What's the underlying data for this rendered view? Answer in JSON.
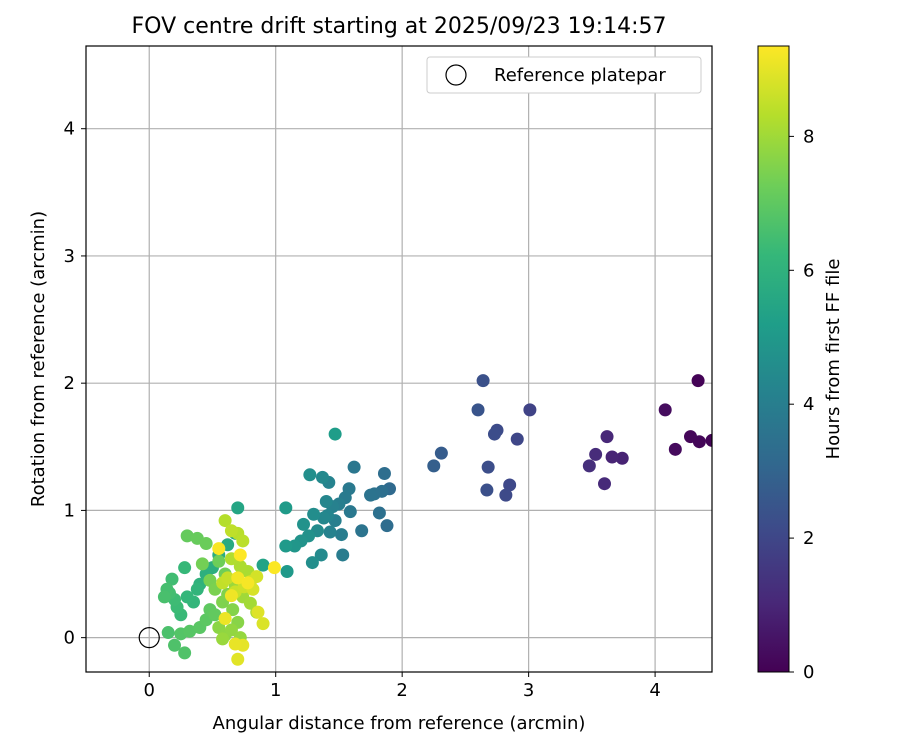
{
  "chart_data": {
    "type": "scatter",
    "title": "FOV centre drift starting at 2025/09/23 19:14:57",
    "xlabel": "Angular distance from reference (arcmin)",
    "ylabel": "Rotation from reference (arcmin)",
    "xlim": [
      -0.5,
      4.45
    ],
    "ylim": [
      -0.27,
      4.65
    ],
    "x_ticks": [
      0,
      1,
      2,
      3,
      4
    ],
    "y_ticks": [
      0,
      1,
      2,
      3,
      4
    ],
    "grid": true,
    "legend": {
      "position": "top-right",
      "entries": [
        "Reference platepar"
      ]
    },
    "colorbar": {
      "label": "Hours from first FF file",
      "min": 0,
      "max": 9.35,
      "ticks": [
        0,
        2,
        4,
        6,
        8
      ],
      "colormap": "viridis"
    },
    "reference_point": {
      "x": 0,
      "y": 0
    },
    "series": [
      {
        "points": [
          [
            4.34,
            2.02,
            0.05
          ],
          [
            4.45,
            1.55,
            0.08
          ],
          [
            4.35,
            1.54,
            0.12
          ],
          [
            4.28,
            1.58,
            0.15
          ],
          [
            4.16,
            1.48,
            0.25
          ],
          [
            4.08,
            1.79,
            0.3
          ],
          [
            3.74,
            1.41,
            0.9
          ],
          [
            3.66,
            1.42,
            0.95
          ],
          [
            3.62,
            1.58,
            1.05
          ],
          [
            3.6,
            1.21,
            1.1
          ],
          [
            3.53,
            1.44,
            1.15
          ],
          [
            3.48,
            1.35,
            1.25
          ],
          [
            3.01,
            1.79,
            1.9
          ],
          [
            2.91,
            1.56,
            2.0
          ],
          [
            2.85,
            1.2,
            2.05
          ],
          [
            2.82,
            1.12,
            2.1
          ],
          [
            2.75,
            1.63,
            2.15
          ],
          [
            2.73,
            1.6,
            2.2
          ],
          [
            2.68,
            1.34,
            2.25
          ],
          [
            2.67,
            1.16,
            2.3
          ],
          [
            2.64,
            2.02,
            2.35
          ],
          [
            2.6,
            1.79,
            2.45
          ],
          [
            2.31,
            1.45,
            2.7
          ],
          [
            2.25,
            1.35,
            2.8
          ],
          [
            1.9,
            1.17,
            3.2
          ],
          [
            1.88,
            0.88,
            3.3
          ],
          [
            1.86,
            1.29,
            3.35
          ],
          [
            1.84,
            1.15,
            3.4
          ],
          [
            1.82,
            0.98,
            3.45
          ],
          [
            1.78,
            1.13,
            3.5
          ],
          [
            1.75,
            1.12,
            3.55
          ],
          [
            1.68,
            0.84,
            3.6
          ],
          [
            1.62,
            1.34,
            3.7
          ],
          [
            1.59,
            0.99,
            3.75
          ],
          [
            1.58,
            1.17,
            3.8
          ],
          [
            1.55,
            1.1,
            3.85
          ],
          [
            1.53,
            0.65,
            3.9
          ],
          [
            1.52,
            0.81,
            3.95
          ],
          [
            1.5,
            1.05,
            4.0
          ],
          [
            1.47,
            0.92,
            4.05
          ],
          [
            1.45,
            1.03,
            4.1
          ],
          [
            1.43,
            0.83,
            4.15
          ],
          [
            1.42,
            1.22,
            4.2
          ],
          [
            1.41,
            0.96,
            4.25
          ],
          [
            1.4,
            1.07,
            4.3
          ],
          [
            1.38,
            0.94,
            4.35
          ],
          [
            1.37,
            1.26,
            4.4
          ],
          [
            1.36,
            0.65,
            4.45
          ],
          [
            1.33,
            0.84,
            4.5
          ],
          [
            1.3,
            0.97,
            4.55
          ],
          [
            1.29,
            0.59,
            4.6
          ],
          [
            1.27,
            1.28,
            4.65
          ],
          [
            1.26,
            0.8,
            4.7
          ],
          [
            1.22,
            0.89,
            4.75
          ],
          [
            1.2,
            0.76,
            4.8
          ],
          [
            1.15,
            0.72,
            4.9
          ],
          [
            1.09,
            0.52,
            5.0
          ],
          [
            1.08,
            0.72,
            5.05
          ],
          [
            1.08,
            1.02,
            5.1
          ],
          [
            1.47,
            1.6,
            5.15
          ],
          [
            0.9,
            0.57,
            5.4
          ],
          [
            0.7,
            1.02,
            5.5
          ],
          [
            0.68,
            0.82,
            5.6
          ],
          [
            0.62,
            0.73,
            5.7
          ],
          [
            0.55,
            0.65,
            5.75
          ],
          [
            0.5,
            0.55,
            5.85
          ],
          [
            0.45,
            0.5,
            5.9
          ],
          [
            0.4,
            0.42,
            6.0
          ],
          [
            0.38,
            0.38,
            6.1
          ],
          [
            0.35,
            0.28,
            6.15
          ],
          [
            0.3,
            0.32,
            6.2
          ],
          [
            0.28,
            0.55,
            6.25
          ],
          [
            0.25,
            0.18,
            6.3
          ],
          [
            0.22,
            0.24,
            6.35
          ],
          [
            0.2,
            0.3,
            6.4
          ],
          [
            0.18,
            0.46,
            6.45
          ],
          [
            0.16,
            0.35,
            6.5
          ],
          [
            0.14,
            0.38,
            6.55
          ],
          [
            0.12,
            0.32,
            6.6
          ],
          [
            0.15,
            0.04,
            6.65
          ],
          [
            0.2,
            -0.06,
            6.7
          ],
          [
            0.28,
            -0.12,
            6.75
          ],
          [
            0.25,
            0.03,
            6.8
          ],
          [
            0.32,
            0.05,
            6.85
          ],
          [
            0.4,
            0.08,
            6.9
          ],
          [
            0.45,
            0.14,
            6.95
          ],
          [
            0.48,
            0.22,
            7.0
          ],
          [
            0.52,
            0.18,
            7.05
          ],
          [
            0.3,
            0.8,
            7.1
          ],
          [
            0.38,
            0.78,
            7.15
          ],
          [
            0.45,
            0.74,
            7.2
          ],
          [
            0.55,
            0.6,
            7.25
          ],
          [
            0.6,
            0.5,
            7.3
          ],
          [
            0.42,
            0.58,
            7.35
          ],
          [
            0.48,
            0.45,
            7.4
          ],
          [
            0.52,
            0.38,
            7.45
          ],
          [
            0.58,
            0.28,
            7.5
          ],
          [
            0.62,
            0.34,
            7.55
          ],
          [
            0.66,
            0.22,
            7.6
          ],
          [
            0.7,
            0.12,
            7.65
          ],
          [
            0.55,
            0.08,
            7.7
          ],
          [
            0.6,
            0.02,
            7.75
          ],
          [
            0.65,
            0.06,
            7.8
          ],
          [
            0.72,
            0.0,
            7.85
          ],
          [
            0.58,
            -0.01,
            7.9
          ],
          [
            0.68,
            0.41,
            7.95
          ],
          [
            0.74,
            0.32,
            8.0
          ],
          [
            0.8,
            0.27,
            8.05
          ],
          [
            0.85,
            0.2,
            8.1
          ],
          [
            0.78,
            0.52,
            8.15
          ],
          [
            0.72,
            0.56,
            8.2
          ],
          [
            0.65,
            0.62,
            8.25
          ],
          [
            0.6,
            0.92,
            8.3
          ],
          [
            0.7,
            0.82,
            8.35
          ],
          [
            0.74,
            0.76,
            8.4
          ],
          [
            0.65,
            0.84,
            8.45
          ],
          [
            0.58,
            0.43,
            8.5
          ],
          [
            0.62,
            0.47,
            8.55
          ],
          [
            0.68,
            0.36,
            8.6
          ],
          [
            0.75,
            0.4,
            8.65
          ],
          [
            0.8,
            0.44,
            8.7
          ],
          [
            0.85,
            0.48,
            8.75
          ],
          [
            0.82,
            0.38,
            8.8
          ],
          [
            0.9,
            0.11,
            8.85
          ],
          [
            0.86,
            0.2,
            8.9
          ],
          [
            0.7,
            -0.17,
            8.95
          ],
          [
            0.74,
            -0.06,
            9.0
          ],
          [
            0.68,
            -0.05,
            9.05
          ],
          [
            0.6,
            0.15,
            9.1
          ],
          [
            0.65,
            0.33,
            9.15
          ],
          [
            0.7,
            0.47,
            9.2
          ],
          [
            0.78,
            0.43,
            9.25
          ],
          [
            0.55,
            0.7,
            9.28
          ],
          [
            0.99,
            0.55,
            9.32
          ],
          [
            0.72,
            0.65,
            9.35
          ]
        ]
      }
    ]
  }
}
